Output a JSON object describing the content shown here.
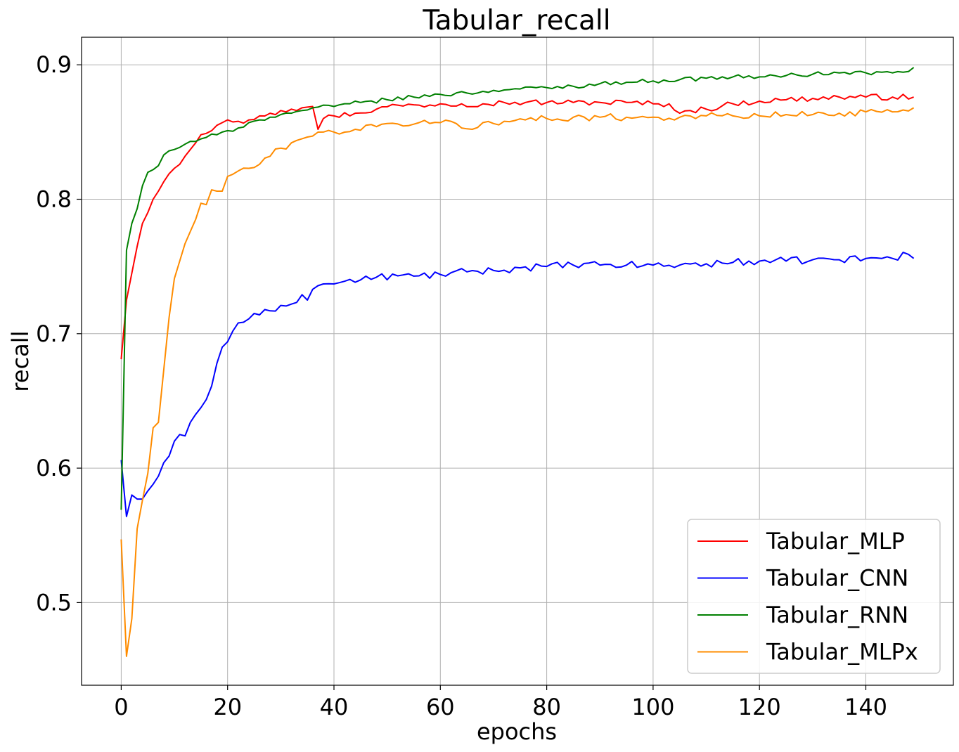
{
  "chart_data": {
    "type": "line",
    "title": "Tabular_recall",
    "xlabel": "epochs",
    "ylabel": "recall",
    "xlim": [
      -7.45,
      156.45
    ],
    "ylim": [
      0.4385,
      0.9205
    ],
    "xticks": [
      0,
      20,
      40,
      60,
      80,
      100,
      120,
      140
    ],
    "yticks": [
      0.5,
      0.6,
      0.7,
      0.8,
      0.9
    ],
    "grid": true,
    "legend_position": "lower-right",
    "series": [
      {
        "name": "Tabular_MLP",
        "color": "#ff0000",
        "anchors": [
          [
            0,
            0.681
          ],
          [
            1,
            0.725
          ],
          [
            2,
            0.745
          ],
          [
            3,
            0.765
          ],
          [
            4,
            0.782
          ],
          [
            5,
            0.79
          ],
          [
            6,
            0.8
          ],
          [
            7,
            0.806
          ],
          [
            8,
            0.813
          ],
          [
            9,
            0.819
          ],
          [
            10,
            0.823
          ],
          [
            11,
            0.826
          ],
          [
            12,
            0.832
          ],
          [
            13,
            0.837
          ],
          [
            14,
            0.842
          ],
          [
            15,
            0.848
          ],
          [
            16,
            0.849
          ],
          [
            17,
            0.851
          ],
          [
            18,
            0.855
          ],
          [
            19,
            0.857
          ],
          [
            20,
            0.859
          ],
          [
            22,
            0.858
          ],
          [
            24,
            0.859
          ],
          [
            26,
            0.862
          ],
          [
            28,
            0.864
          ],
          [
            30,
            0.866
          ],
          [
            32,
            0.867
          ],
          [
            34,
            0.868
          ],
          [
            36,
            0.869
          ],
          [
            37,
            0.852
          ],
          [
            38,
            0.86
          ],
          [
            40,
            0.862
          ],
          [
            44,
            0.864
          ],
          [
            48,
            0.867
          ],
          [
            52,
            0.87
          ],
          [
            56,
            0.87
          ],
          [
            60,
            0.871
          ],
          [
            64,
            0.871
          ],
          [
            68,
            0.871
          ],
          [
            72,
            0.872
          ],
          [
            76,
            0.872
          ],
          [
            80,
            0.872
          ],
          [
            85,
            0.872
          ],
          [
            90,
            0.872
          ],
          [
            95,
            0.872
          ],
          [
            100,
            0.871
          ],
          [
            103,
            0.871
          ],
          [
            105,
            0.864
          ],
          [
            107,
            0.866
          ],
          [
            110,
            0.867
          ],
          [
            115,
            0.871
          ],
          [
            120,
            0.873
          ],
          [
            125,
            0.874
          ],
          [
            130,
            0.875
          ],
          [
            135,
            0.876
          ],
          [
            140,
            0.876
          ],
          [
            145,
            0.876
          ],
          [
            149,
            0.876
          ]
        ],
        "noise": 0.0022
      },
      {
        "name": "Tabular_CNN",
        "color": "#0000ff",
        "anchors": [
          [
            0,
            0.606
          ],
          [
            1,
            0.564
          ],
          [
            2,
            0.58
          ],
          [
            3,
            0.577
          ],
          [
            4,
            0.577
          ],
          [
            5,
            0.583
          ],
          [
            6,
            0.588
          ],
          [
            7,
            0.594
          ],
          [
            8,
            0.604
          ],
          [
            9,
            0.609
          ],
          [
            10,
            0.62
          ],
          [
            11,
            0.625
          ],
          [
            12,
            0.624
          ],
          [
            13,
            0.634
          ],
          [
            14,
            0.64
          ],
          [
            15,
            0.645
          ],
          [
            16,
            0.651
          ],
          [
            17,
            0.661
          ],
          [
            18,
            0.678
          ],
          [
            19,
            0.69
          ],
          [
            20,
            0.694
          ],
          [
            21,
            0.702
          ],
          [
            22,
            0.708
          ],
          [
            24,
            0.711
          ],
          [
            26,
            0.714
          ],
          [
            28,
            0.717
          ],
          [
            30,
            0.721
          ],
          [
            32,
            0.722
          ],
          [
            34,
            0.729
          ],
          [
            35,
            0.725
          ],
          [
            36,
            0.733
          ],
          [
            38,
            0.737
          ],
          [
            40,
            0.737
          ],
          [
            42,
            0.739
          ],
          [
            45,
            0.74
          ],
          [
            48,
            0.742
          ],
          [
            52,
            0.743
          ],
          [
            56,
            0.743
          ],
          [
            60,
            0.744
          ],
          [
            65,
            0.746
          ],
          [
            70,
            0.747
          ],
          [
            75,
            0.749
          ],
          [
            80,
            0.75
          ],
          [
            85,
            0.751
          ],
          [
            90,
            0.751
          ],
          [
            95,
            0.751
          ],
          [
            100,
            0.751
          ],
          [
            105,
            0.751
          ],
          [
            110,
            0.752
          ],
          [
            115,
            0.753
          ],
          [
            120,
            0.754
          ],
          [
            125,
            0.754
          ],
          [
            130,
            0.755
          ],
          [
            135,
            0.755
          ],
          [
            140,
            0.756
          ],
          [
            145,
            0.756
          ],
          [
            148,
            0.759
          ],
          [
            149,
            0.756
          ]
        ],
        "noise": 0.0028
      },
      {
        "name": "Tabular_RNN",
        "color": "#008000",
        "anchors": [
          [
            0,
            0.569
          ],
          [
            1,
            0.762
          ],
          [
            2,
            0.782
          ],
          [
            3,
            0.793
          ],
          [
            4,
            0.81
          ],
          [
            5,
            0.82
          ],
          [
            6,
            0.822
          ],
          [
            7,
            0.825
          ],
          [
            8,
            0.833
          ],
          [
            9,
            0.836
          ],
          [
            10,
            0.837
          ],
          [
            12,
            0.841
          ],
          [
            14,
            0.843
          ],
          [
            16,
            0.846
          ],
          [
            18,
            0.848
          ],
          [
            20,
            0.851
          ],
          [
            22,
            0.853
          ],
          [
            24,
            0.857
          ],
          [
            26,
            0.859
          ],
          [
            28,
            0.861
          ],
          [
            30,
            0.863
          ],
          [
            32,
            0.864
          ],
          [
            34,
            0.866
          ],
          [
            36,
            0.868
          ],
          [
            40,
            0.869
          ],
          [
            45,
            0.872
          ],
          [
            50,
            0.874
          ],
          [
            55,
            0.876
          ],
          [
            60,
            0.878
          ],
          [
            65,
            0.879
          ],
          [
            70,
            0.881
          ],
          [
            75,
            0.882
          ],
          [
            80,
            0.883
          ],
          [
            85,
            0.884
          ],
          [
            90,
            0.886
          ],
          [
            95,
            0.887
          ],
          [
            100,
            0.888
          ],
          [
            105,
            0.889
          ],
          [
            110,
            0.89
          ],
          [
            115,
            0.891
          ],
          [
            120,
            0.891
          ],
          [
            125,
            0.892
          ],
          [
            130,
            0.893
          ],
          [
            135,
            0.894
          ],
          [
            140,
            0.894
          ],
          [
            145,
            0.894
          ],
          [
            148,
            0.895
          ],
          [
            149,
            0.898
          ]
        ],
        "noise": 0.0016
      },
      {
        "name": "Tabular_MLPx",
        "color": "#ff8c00",
        "anchors": [
          [
            0,
            0.547
          ],
          [
            1,
            0.46
          ],
          [
            2,
            0.488
          ],
          [
            3,
            0.555
          ],
          [
            4,
            0.576
          ],
          [
            5,
            0.596
          ],
          [
            6,
            0.63
          ],
          [
            7,
            0.634
          ],
          [
            8,
            0.673
          ],
          [
            9,
            0.712
          ],
          [
            10,
            0.741
          ],
          [
            11,
            0.754
          ],
          [
            12,
            0.767
          ],
          [
            13,
            0.776
          ],
          [
            14,
            0.785
          ],
          [
            15,
            0.797
          ],
          [
            16,
            0.796
          ],
          [
            17,
            0.807
          ],
          [
            18,
            0.806
          ],
          [
            19,
            0.806
          ],
          [
            20,
            0.817
          ],
          [
            22,
            0.821
          ],
          [
            24,
            0.823
          ],
          [
            26,
            0.826
          ],
          [
            28,
            0.832
          ],
          [
            30,
            0.838
          ],
          [
            32,
            0.842
          ],
          [
            34,
            0.845
          ],
          [
            36,
            0.847
          ],
          [
            38,
            0.85
          ],
          [
            40,
            0.85
          ],
          [
            44,
            0.852
          ],
          [
            48,
            0.854
          ],
          [
            52,
            0.856
          ],
          [
            56,
            0.857
          ],
          [
            60,
            0.857
          ],
          [
            62,
            0.858
          ],
          [
            64,
            0.853
          ],
          [
            66,
            0.852
          ],
          [
            68,
            0.857
          ],
          [
            72,
            0.858
          ],
          [
            76,
            0.859
          ],
          [
            80,
            0.86
          ],
          [
            85,
            0.861
          ],
          [
            90,
            0.861
          ],
          [
            95,
            0.861
          ],
          [
            100,
            0.861
          ],
          [
            105,
            0.861
          ],
          [
            110,
            0.862
          ],
          [
            115,
            0.862
          ],
          [
            120,
            0.862
          ],
          [
            125,
            0.863
          ],
          [
            130,
            0.863
          ],
          [
            135,
            0.864
          ],
          [
            140,
            0.865
          ],
          [
            145,
            0.865
          ],
          [
            149,
            0.868
          ]
        ],
        "noise": 0.0026
      }
    ]
  }
}
